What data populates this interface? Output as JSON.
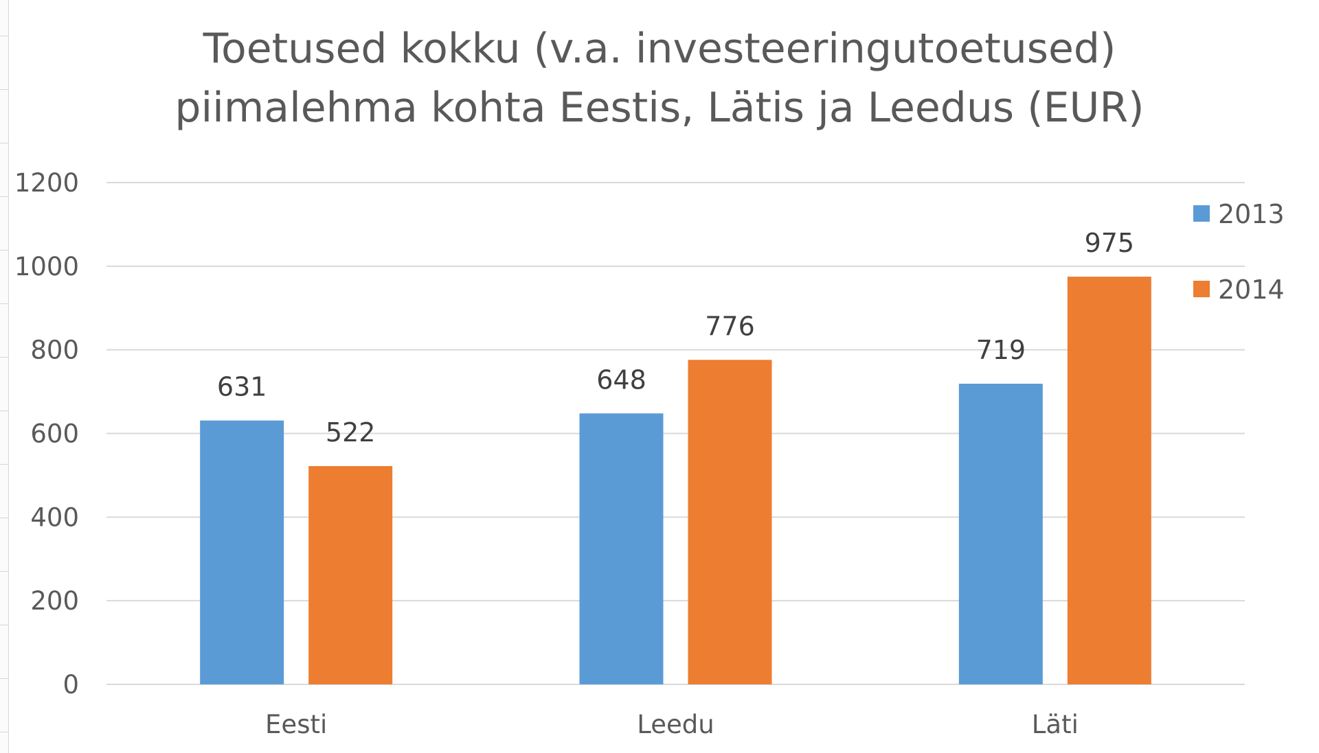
{
  "chart_data": {
    "type": "bar",
    "title_lines": [
      "Toetused kokku (v.a. investeeringutoetused)",
      "piimalehma kohta Eestis, Lätis ja Leedus (EUR)"
    ],
    "categories": [
      "Eesti",
      "Leedu",
      "Läti"
    ],
    "series": [
      {
        "name": "2013",
        "values": [
          631,
          648,
          719
        ],
        "color": "#5B9BD5"
      },
      {
        "name": "2014",
        "values": [
          522,
          776,
          975
        ],
        "color": "#ED7D31"
      }
    ],
    "ylim": [
      0,
      1200
    ],
    "yticks": [
      0,
      200,
      400,
      600,
      800,
      1000,
      1200
    ],
    "grid": true,
    "legend_position": "top-right",
    "gridline_color": "#d9d9d9"
  }
}
